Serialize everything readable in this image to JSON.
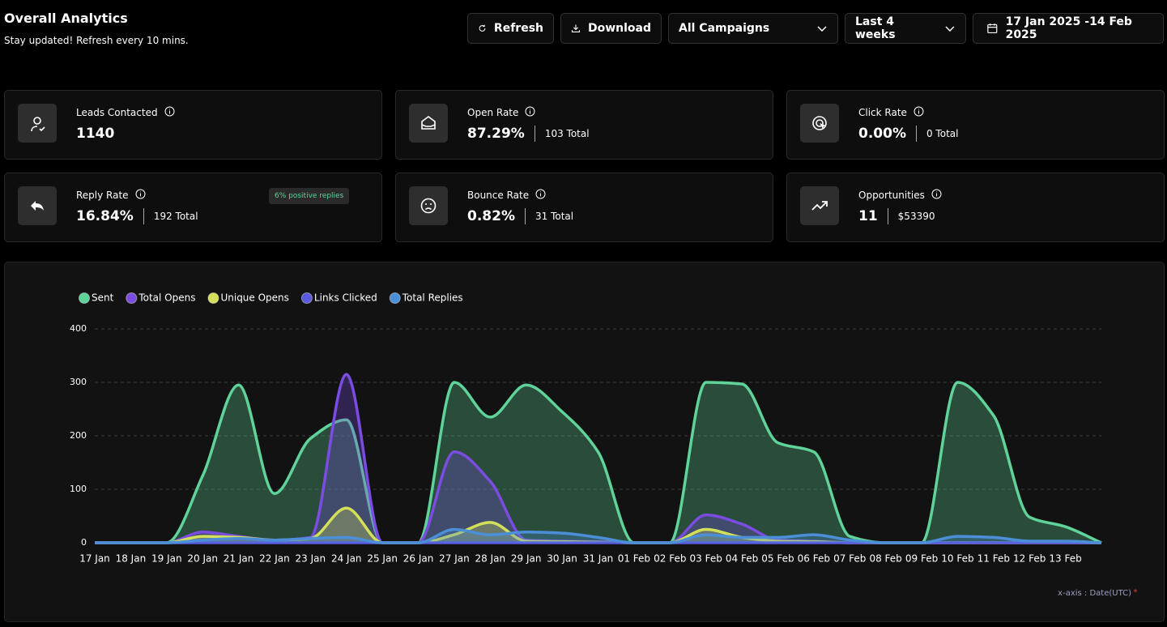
{
  "header": {
    "title": "Overall Analytics",
    "subtitle": "Stay updated! Refresh every 10 mins."
  },
  "toolbar": {
    "refresh": "Refresh",
    "download": "Download",
    "campaign": "All Campaigns",
    "period": "Last 4 weeks",
    "date_range": "17 Jan 2025 -14 Feb 2025"
  },
  "cards": [
    {
      "label": "Leads Contacted",
      "value": "1140"
    },
    {
      "label": "Open Rate",
      "value": "87.29%",
      "total": "103 Total"
    },
    {
      "label": "Click Rate",
      "value": "0.00%",
      "total": "0 Total"
    },
    {
      "label": "Reply Rate",
      "value": "16.84%",
      "total": "192 Total",
      "badge": "6% positive replies"
    },
    {
      "label": "Bounce Rate",
      "value": "0.82%",
      "total": "31 Total"
    },
    {
      "label": "Opportunities",
      "value": "11",
      "total": "$53390"
    }
  ],
  "chart_data": {
    "type": "area",
    "categories": [
      "17 Jan",
      "18 Jan",
      "19 Jan",
      "20 Jan",
      "21 Jan",
      "22 Jan",
      "23 Jan",
      "24 Jan",
      "25 Jan",
      "26 Jan",
      "27 Jan",
      "28 Jan",
      "29 Jan",
      "30 Jan",
      "31 Jan",
      "01 Feb",
      "02 Feb",
      "03 Feb",
      "04 Feb",
      "05 Feb",
      "06 Feb",
      "07 Feb",
      "08 Feb",
      "09 Feb",
      "10 Feb",
      "11 Feb",
      "12 Feb",
      "13 Feb",
      null
    ],
    "series": [
      {
        "name": "Sent",
        "color": "#5fd39a",
        "values": [
          0,
          0,
          0,
          125,
          295,
          92,
          195,
          230,
          0,
          0,
          300,
          235,
          295,
          245,
          170,
          0,
          0,
          300,
          297,
          187,
          170,
          12,
          0,
          0,
          300,
          238,
          48,
          30,
          0
        ]
      },
      {
        "name": "Total Opens",
        "color": "#7b4ce0",
        "values": [
          0,
          0,
          0,
          20,
          12,
          5,
          10,
          315,
          0,
          0,
          170,
          115,
          5,
          3,
          2,
          0,
          0,
          52,
          35,
          5,
          3,
          0,
          0,
          0,
          0,
          0,
          0,
          0,
          0
        ]
      },
      {
        "name": "Unique Opens",
        "color": "#d4e05a",
        "values": [
          0,
          0,
          0,
          12,
          10,
          5,
          8,
          65,
          0,
          0,
          15,
          38,
          3,
          2,
          1,
          0,
          0,
          25,
          10,
          3,
          2,
          0,
          0,
          0,
          0,
          0,
          0,
          0,
          0
        ]
      },
      {
        "name": "Links Clicked",
        "color": "#5a5ae0",
        "values": [
          0,
          0,
          0,
          0,
          0,
          0,
          0,
          0,
          0,
          0,
          0,
          0,
          0,
          0,
          0,
          0,
          0,
          0,
          0,
          0,
          0,
          0,
          0,
          0,
          0,
          0,
          0,
          0,
          0
        ]
      },
      {
        "name": "Total Replies",
        "color": "#4a8fd8",
        "values": [
          0,
          0,
          0,
          5,
          8,
          5,
          8,
          10,
          0,
          0,
          25,
          15,
          20,
          18,
          10,
          0,
          0,
          15,
          10,
          10,
          15,
          5,
          0,
          0,
          12,
          10,
          3,
          3,
          0
        ]
      }
    ],
    "ylim": [
      0,
      400
    ],
    "yticks": [
      0,
      100,
      200,
      300,
      400
    ],
    "grid": true,
    "x_note": "x-axis : Date(UTC)",
    "x_note_mark": "*"
  }
}
